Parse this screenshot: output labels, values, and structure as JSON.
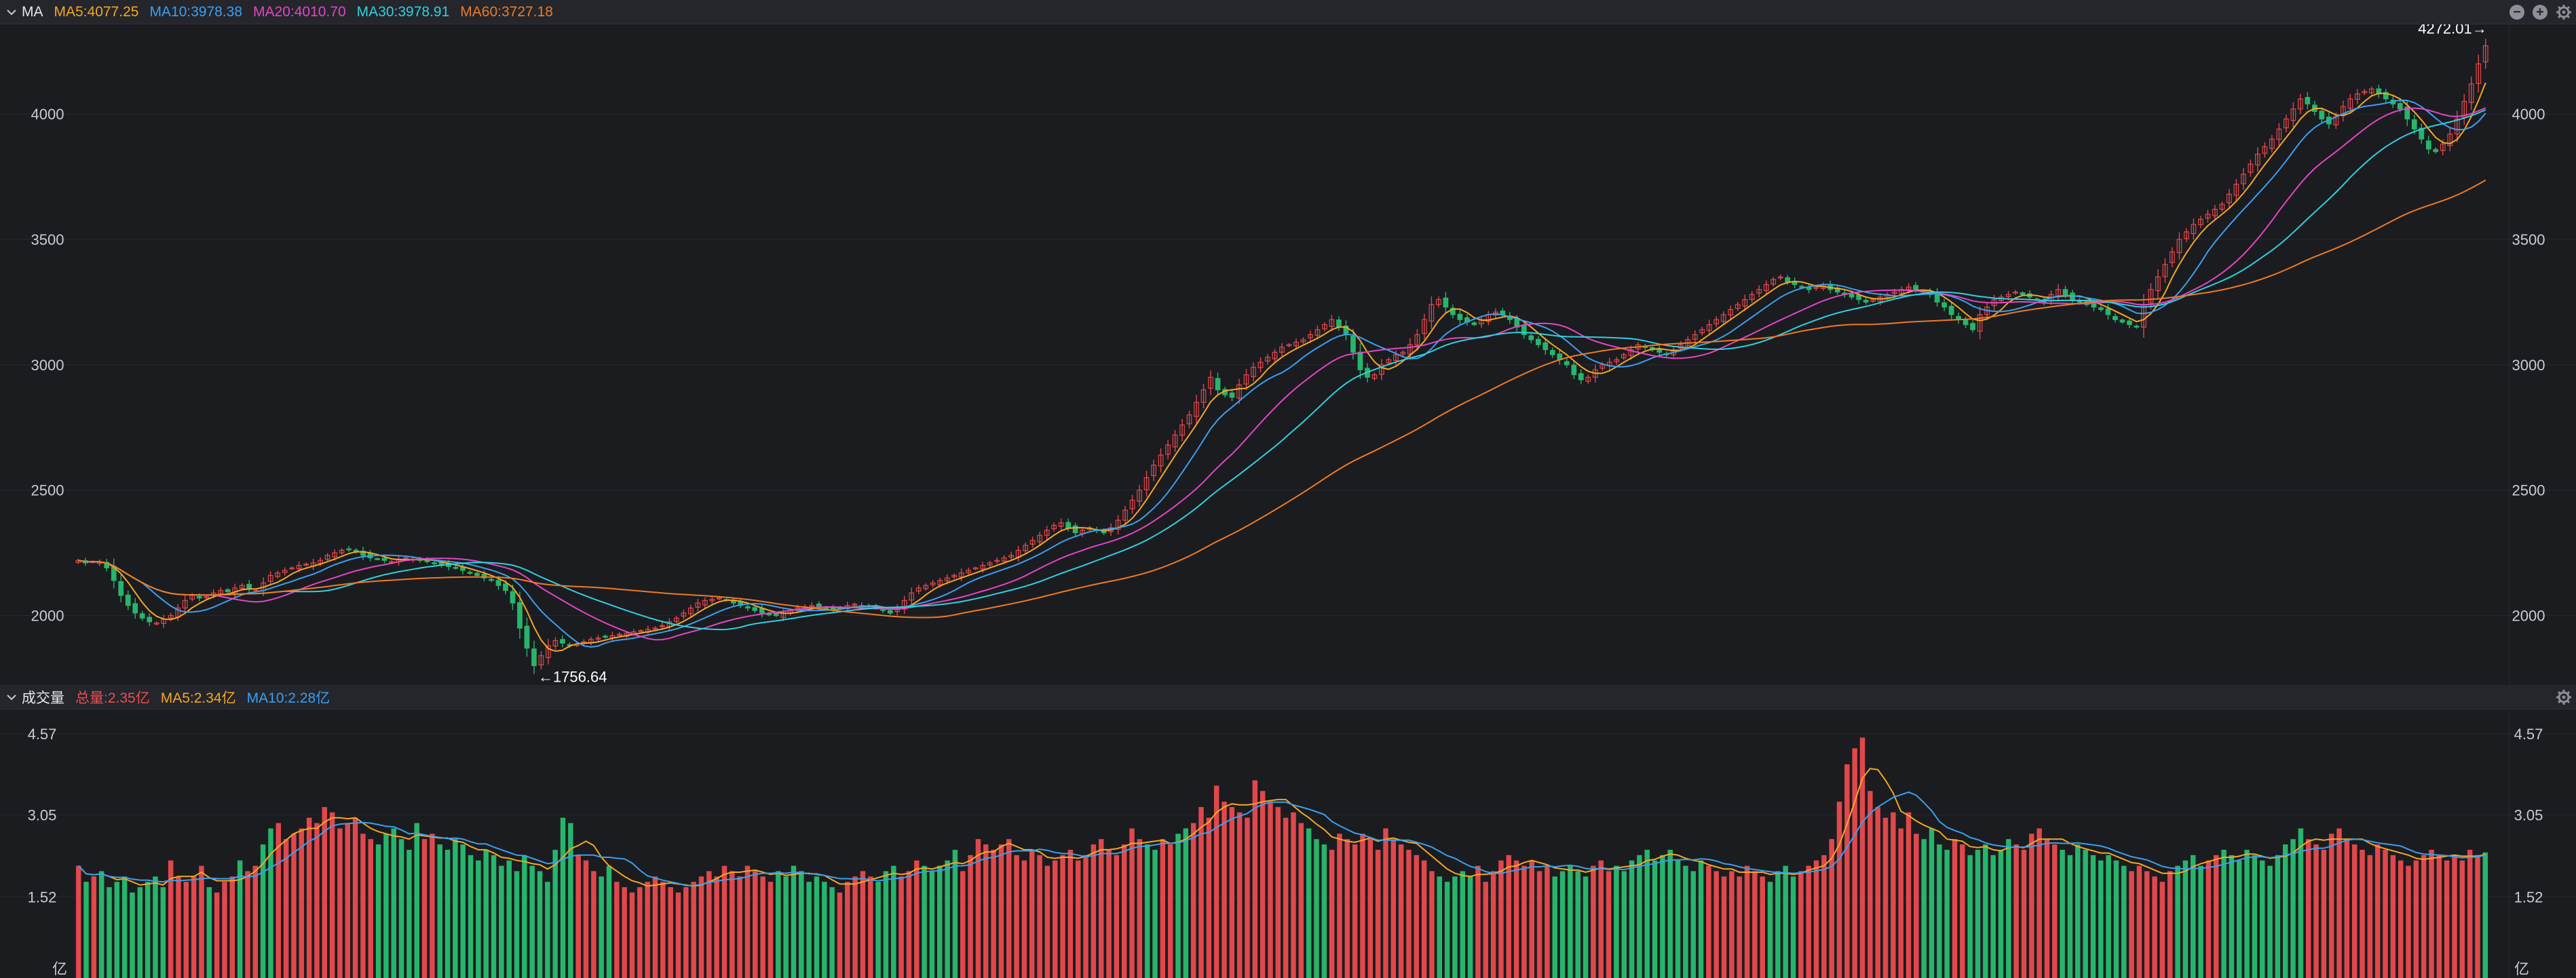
{
  "indicator_bar": {
    "name": "MA",
    "items": [
      {
        "label": "MA5:4077.25",
        "color": "#f5a623"
      },
      {
        "label": "MA10:3978.38",
        "color": "#3aa0f0"
      },
      {
        "label": "MA20:4010.70",
        "color": "#e545c4"
      },
      {
        "label": "MA30:3978.91",
        "color": "#2ed1e0"
      },
      {
        "label": "MA60:3727.18",
        "color": "#f07a22"
      }
    ],
    "icons": [
      "minus-circle-icon",
      "plus-circle-icon",
      "gear-icon"
    ]
  },
  "volume_bar": {
    "name": "成交量",
    "items": [
      {
        "label": "总量:2.35亿",
        "color": "#ee4c4c"
      },
      {
        "label": "MA5:2.34亿",
        "color": "#f5a623"
      },
      {
        "label": "MA10:2.28亿",
        "color": "#3aa0f0"
      }
    ],
    "icons": [
      "gear-icon"
    ]
  },
  "colors": {
    "up": "#e0484b",
    "down": "#27b56b",
    "bg": "#1b1c20",
    "panel_bar": "#24262c"
  },
  "chart_data": [
    {
      "type": "candlestick",
      "title": "",
      "y_ticks": [
        "2000",
        "2500",
        "3000",
        "3500",
        "4000"
      ],
      "ylim": [
        1750,
        4330
      ],
      "grid": true,
      "annotations": [
        {
          "label": "4272.01→",
          "value": 4272.01
        },
        {
          "label": "←1756.64",
          "value": 1756.64
        }
      ],
      "close": [
        2220,
        2210,
        2215,
        2212,
        2190,
        2140,
        2080,
        2040,
        2010,
        1990,
        1975,
        1970,
        1985,
        2000,
        2030,
        2060,
        2080,
        2070,
        2075,
        2090,
        2100,
        2095,
        2110,
        2120,
        2105,
        2100,
        2130,
        2160,
        2170,
        2180,
        2190,
        2200,
        2205,
        2210,
        2220,
        2240,
        2250,
        2260,
        2265,
        2255,
        2240,
        2230,
        2225,
        2220,
        2215,
        2225,
        2230,
        2225,
        2220,
        2215,
        2210,
        2200,
        2195,
        2190,
        2180,
        2170,
        2160,
        2150,
        2140,
        2120,
        2100,
        2050,
        1950,
        1870,
        1800,
        1840,
        1880,
        1900,
        1890,
        1880,
        1885,
        1895,
        1905,
        1910,
        1915,
        1920,
        1925,
        1930,
        1935,
        1940,
        1945,
        1950,
        1960,
        1975,
        1990,
        2010,
        2030,
        2050,
        2060,
        2065,
        2070,
        2060,
        2050,
        2040,
        2030,
        2020,
        2010,
        2005,
        2000,
        2010,
        2020,
        2030,
        2035,
        2040,
        2035,
        2030,
        2025,
        2030,
        2040,
        2045,
        2040,
        2035,
        2030,
        2020,
        2010,
        2030,
        2060,
        2090,
        2110,
        2120,
        2130,
        2140,
        2150,
        2160,
        2170,
        2180,
        2190,
        2200,
        2210,
        2220,
        2230,
        2240,
        2260,
        2280,
        2300,
        2320,
        2340,
        2360,
        2370,
        2350,
        2330,
        2340,
        2350,
        2340,
        2330,
        2350,
        2380,
        2420,
        2460,
        2500,
        2550,
        2600,
        2640,
        2680,
        2720,
        2760,
        2800,
        2850,
        2900,
        2950,
        2900,
        2880,
        2870,
        2920,
        2960,
        2990,
        3010,
        3030,
        3050,
        3070,
        3080,
        3090,
        3100,
        3120,
        3140,
        3160,
        3180,
        3150,
        3120,
        3050,
        2980,
        2950,
        2960,
        3000,
        3020,
        3040,
        3050,
        3080,
        3120,
        3180,
        3240,
        3260,
        3230,
        3200,
        3180,
        3170,
        3160,
        3180,
        3200,
        3210,
        3200,
        3180,
        3150,
        3120,
        3100,
        3080,
        3060,
        3040,
        3020,
        3000,
        2960,
        2940,
        2950,
        2980,
        3000,
        3010,
        3020,
        3040,
        3060,
        3080,
        3070,
        3060,
        3050,
        3040,
        3060,
        3080,
        3100,
        3120,
        3140,
        3160,
        3180,
        3200,
        3220,
        3240,
        3260,
        3280,
        3300,
        3320,
        3340,
        3350,
        3330,
        3320,
        3310,
        3300,
        3310,
        3320,
        3300,
        3290,
        3280,
        3270,
        3260,
        3250,
        3260,
        3270,
        3280,
        3290,
        3300,
        3310,
        3300,
        3290,
        3280,
        3250,
        3230,
        3200,
        3180,
        3160,
        3140,
        3200,
        3230,
        3260,
        3270,
        3280,
        3290,
        3280,
        3270,
        3260,
        3250,
        3280,
        3300,
        3280,
        3260,
        3250,
        3240,
        3230,
        3220,
        3200,
        3180,
        3170,
        3160,
        3150,
        3240,
        3300,
        3350,
        3400,
        3450,
        3500,
        3530,
        3560,
        3580,
        3600,
        3620,
        3640,
        3680,
        3720,
        3760,
        3800,
        3840,
        3870,
        3900,
        3940,
        3980,
        4020,
        4060,
        4040,
        4010,
        3980,
        3960,
        3990,
        4030,
        4060,
        4080,
        4090,
        4100,
        4080,
        4060,
        4040,
        4020,
        3980,
        3940,
        3900,
        3860,
        3850,
        3880,
        3920,
        3980,
        4050,
        4120,
        4200,
        4272
      ]
    },
    {
      "type": "bar",
      "title": "",
      "y_ticks": [
        "1.52",
        "3.05",
        "4.57"
      ],
      "unit": "亿",
      "ylim": [
        0,
        4.9
      ],
      "values": [
        2.1,
        1.8,
        1.9,
        2.0,
        1.7,
        1.8,
        1.9,
        1.6,
        1.7,
        1.8,
        1.9,
        1.7,
        2.2,
        1.9,
        1.8,
        1.9,
        2.1,
        1.7,
        1.6,
        1.8,
        1.9,
        2.2,
        2.0,
        2.1,
        2.5,
        2.8,
        2.9,
        2.6,
        2.7,
        2.8,
        3.0,
        2.9,
        3.2,
        3.1,
        2.8,
        2.9,
        3.0,
        2.7,
        2.6,
        2.5,
        2.7,
        2.8,
        2.6,
        2.4,
        2.9,
        2.6,
        2.7,
        2.5,
        2.4,
        2.6,
        2.5,
        2.3,
        2.2,
        2.4,
        2.3,
        2.1,
        2.2,
        2.0,
        2.3,
        2.1,
        2.0,
        1.8,
        2.4,
        3.0,
        2.9,
        2.3,
        2.2,
        2.0,
        1.9,
        2.1,
        1.8,
        1.7,
        1.6,
        1.7,
        1.8,
        1.9,
        1.8,
        1.7,
        1.6,
        1.7,
        1.8,
        1.9,
        2.0,
        1.9,
        2.1,
        2.0,
        1.9,
        2.1,
        2.0,
        1.9,
        1.8,
        2.0,
        1.9,
        2.1,
        2.0,
        1.8,
        1.9,
        1.8,
        1.7,
        1.6,
        1.8,
        1.9,
        2.0,
        1.9,
        1.8,
        2.0,
        2.1,
        1.9,
        2.0,
        2.2,
        2.1,
        2.0,
        2.1,
        2.2,
        2.4,
        2.0,
        2.3,
        2.6,
        2.5,
        2.4,
        2.5,
        2.6,
        2.3,
        2.2,
        2.4,
        2.3,
        2.1,
        2.2,
        2.3,
        2.4,
        2.2,
        2.3,
        2.5,
        2.6,
        2.4,
        2.3,
        2.5,
        2.8,
        2.6,
        2.5,
        2.4,
        2.6,
        2.5,
        2.7,
        2.8,
        2.9,
        3.2,
        3.0,
        3.6,
        3.3,
        3.2,
        3.1,
        3.0,
        3.7,
        3.5,
        3.3,
        3.2,
        3.0,
        3.1,
        2.9,
        2.8,
        2.6,
        2.5,
        2.4,
        2.7,
        2.6,
        2.5,
        2.7,
        2.6,
        2.4,
        2.8,
        2.6,
        2.5,
        2.4,
        2.3,
        2.2,
        2.0,
        1.9,
        1.8,
        1.9,
        2.0,
        1.9,
        2.1,
        1.8,
        2.0,
        2.2,
        2.3,
        2.2,
        2.1,
        2.2,
        2.0,
        2.1,
        1.9,
        2.0,
        2.1,
        2.0,
        1.9,
        2.1,
        2.2,
        2.0,
        2.1,
        2.0,
        2.2,
        2.3,
        2.4,
        2.2,
        2.3,
        2.4,
        2.2,
        2.1,
        2.0,
        2.2,
        2.1,
        2.0,
        1.9,
        2.0,
        1.9,
        2.1,
        2.0,
        1.9,
        1.8,
        2.0,
        2.1,
        1.9,
        2.0,
        2.1,
        2.2,
        2.3,
        2.6,
        3.3,
        4.0,
        4.3,
        4.5,
        3.5,
        3.2,
        3.0,
        3.1,
        2.8,
        3.1,
        2.7,
        2.6,
        2.8,
        2.5,
        2.4,
        2.6,
        2.5,
        2.3,
        2.4,
        2.5,
        2.3,
        2.4,
        2.6,
        2.5,
        2.4,
        2.7,
        2.8,
        2.6,
        2.5,
        2.4,
        2.3,
        2.5,
        2.4,
        2.3,
        2.2,
        2.3,
        2.2,
        2.1,
        2.0,
        2.1,
        2.0,
        1.9,
        1.8,
        2.0,
        2.1,
        2.2,
        2.3,
        2.1,
        2.2,
        2.3,
        2.4,
        2.3,
        2.2,
        2.4,
        2.3,
        2.2,
        2.1,
        2.3,
        2.5,
        2.6,
        2.8,
        2.6,
        2.5,
        2.4,
        2.7,
        2.8,
        2.6,
        2.5,
        2.4,
        2.3,
        2.5,
        2.4,
        2.3,
        2.2,
        2.1,
        2.2,
        2.3,
        2.4,
        2.3,
        2.2,
        2.3,
        2.2,
        2.4,
        2.3,
        2.35
      ],
      "ma_series": [
        {
          "name": "MA5",
          "color": "#f5a623",
          "period": 5
        },
        {
          "name": "MA10",
          "color": "#3aa0f0",
          "period": 10
        }
      ]
    }
  ]
}
